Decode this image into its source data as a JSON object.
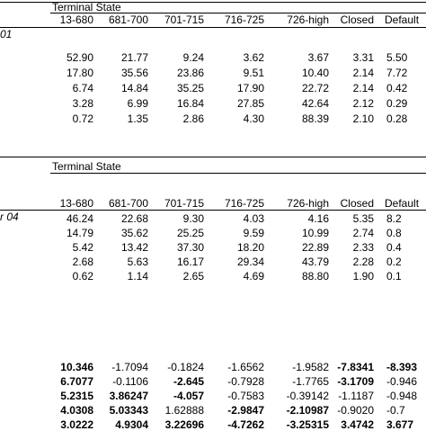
{
  "panel1": {
    "group_label": "Terminal State",
    "period_label": "01",
    "columns": [
      "13-680",
      "681-700",
      "701-715",
      "716-725",
      "726-high",
      "Closed",
      "Default"
    ],
    "rows": [
      [
        "52.90",
        "21.77",
        "9.24",
        "3.62",
        "3.67",
        "3.31",
        "5.50"
      ],
      [
        "17.80",
        "35.56",
        "23.86",
        "9.51",
        "10.40",
        "2.14",
        "7.72"
      ],
      [
        "6.74",
        "14.84",
        "35.25",
        "17.90",
        "22.72",
        "2.14",
        "0.42"
      ],
      [
        "3.28",
        "6.99",
        "16.84",
        "27.85",
        "42.64",
        "2.12",
        "0.29"
      ],
      [
        "0.72",
        "1.35",
        "2.86",
        "4.30",
        "88.39",
        "2.10",
        "0.28"
      ]
    ]
  },
  "panel2": {
    "group_label": "Terminal State",
    "period_label": "r 04",
    "columns": [
      "13-680",
      "681-700",
      "701-715",
      "716-725",
      "726-high",
      "Closed",
      "Default"
    ],
    "rows": [
      [
        "46.24",
        "22.68",
        "9.30",
        "4.03",
        "4.16",
        "5.35",
        "8.2"
      ],
      [
        "14.79",
        "35.62",
        "25.25",
        "9.59",
        "10.99",
        "2.74",
        "0.8"
      ],
      [
        "5.42",
        "13.42",
        "37.30",
        "18.20",
        "22.89",
        "2.33",
        "0.4"
      ],
      [
        "2.68",
        "5.63",
        "16.17",
        "29.34",
        "43.79",
        "2.28",
        "0.2"
      ],
      [
        "0.62",
        "1.14",
        "2.65",
        "4.69",
        "88.80",
        "1.90",
        "0.1"
      ]
    ]
  },
  "panel3": {
    "rows": [
      [
        {
          "v": "10.346",
          "b": true
        },
        {
          "v": "-1.7094",
          "b": false
        },
        {
          "v": "-0.1824",
          "b": false
        },
        {
          "v": "-1.6562",
          "b": false
        },
        {
          "v": "-1.9582",
          "b": false
        },
        {
          "v": "-7.8341",
          "b": true
        },
        {
          "v": "-8.393",
          "b": true
        }
      ],
      [
        {
          "v": "6.7077",
          "b": true
        },
        {
          "v": "-0.1106",
          "b": false
        },
        {
          "v": "-2.645",
          "b": true
        },
        {
          "v": "-0.7928",
          "b": false
        },
        {
          "v": "-1.7765",
          "b": false
        },
        {
          "v": "-3.1709",
          "b": true
        },
        {
          "v": "-0.946",
          "b": false
        }
      ],
      [
        {
          "v": "5.2315",
          "b": true
        },
        {
          "v": "3.86247",
          "b": true
        },
        {
          "v": "-4.057",
          "b": true
        },
        {
          "v": "-0.7583",
          "b": false
        },
        {
          "v": "-0.39142",
          "b": false
        },
        {
          "v": "-1.1187",
          "b": false
        },
        {
          "v": "-0.948",
          "b": false
        }
      ],
      [
        {
          "v": "4.0308",
          "b": true
        },
        {
          "v": "5.03343",
          "b": true
        },
        {
          "v": "1.62888",
          "b": false
        },
        {
          "v": "-2.9847",
          "b": true
        },
        {
          "v": "-2.10987",
          "b": true
        },
        {
          "v": "-0.9020",
          "b": false
        },
        {
          "v": "-0.7",
          "b": false
        }
      ],
      [
        {
          "v": "3.0222",
          "b": true
        },
        {
          "v": "4.9304",
          "b": true
        },
        {
          "v": "3.22696",
          "b": true
        },
        {
          "v": "-4.7262",
          "b": true
        },
        {
          "v": "-3.25315",
          "b": true
        },
        {
          "v": "3.4742",
          "b": true
        },
        {
          "v": "3.677",
          "b": true
        }
      ]
    ]
  }
}
